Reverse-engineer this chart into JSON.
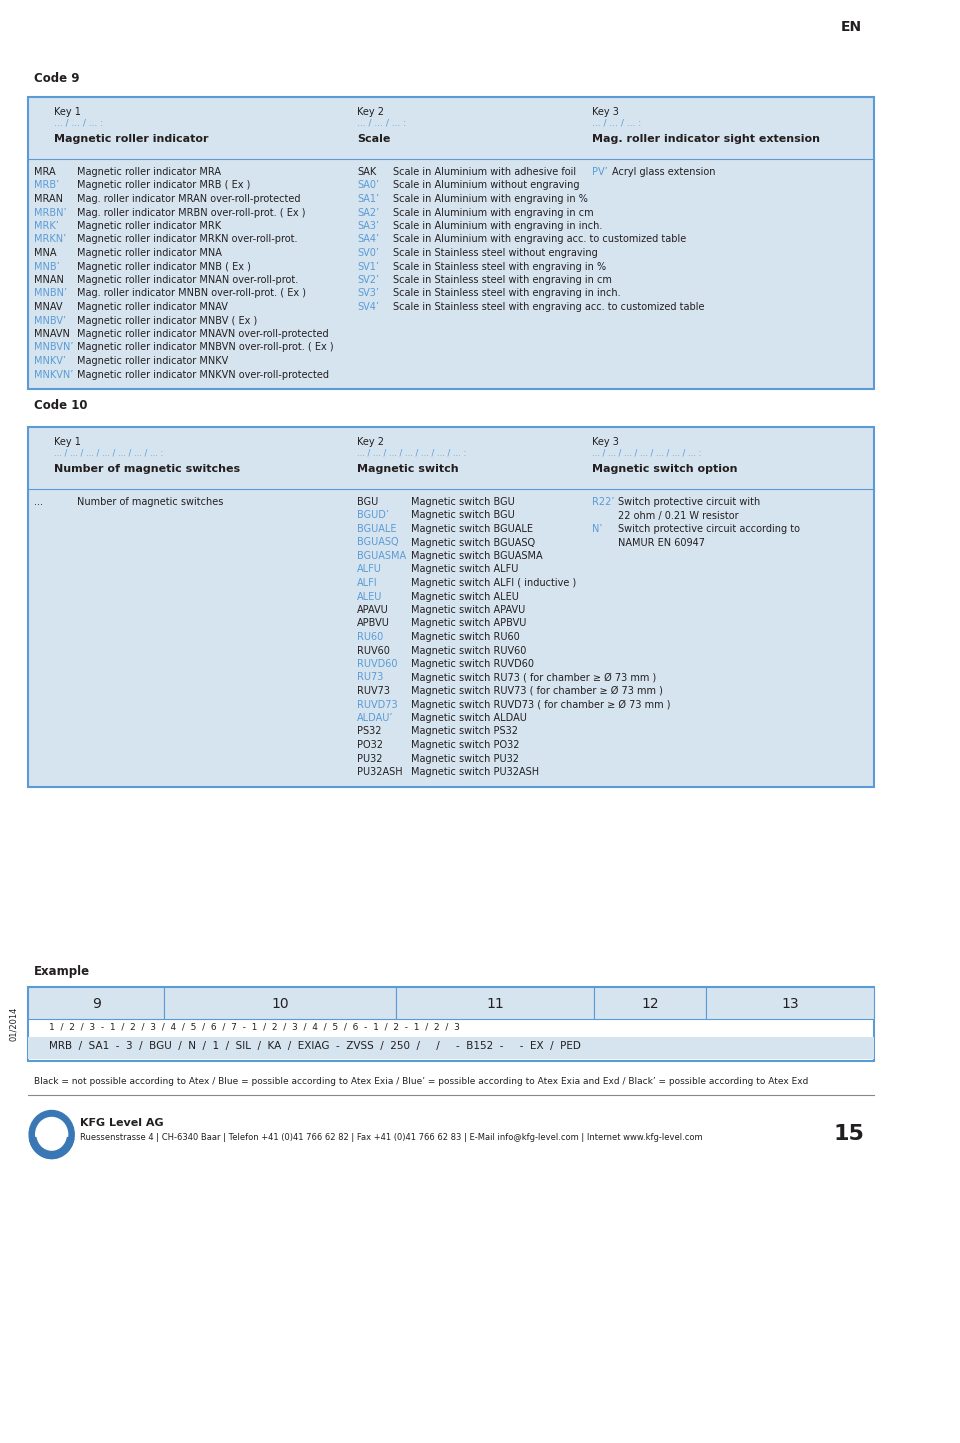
{
  "bg_color": "#ffffff",
  "text_color_black": "#231f20",
  "text_color_blue": "#5b9bd5",
  "box_bg": "#d6e4f0",
  "box_border": "#5b9bd5",
  "page_label": "EN",
  "page_number": "15",
  "code9_label": "Code 9",
  "code10_label": "Code 10",
  "example_label": "Example",
  "footer_line_color": "#888888",
  "company_name": "KFG Level AG",
  "company_address": "Ruessenstrasse 4 | CH-6340 Baar | Telefon +41 (0)41 766 62 82 | Fax +41 (0)41 766 62 83 | E-Mail info@kfg-level.com | Internet www.kfg-level.com",
  "footer_note": "Black = not possible according to Atex / Blue = possible according to Atex Exia / Blue’ = possible according to Atex Exia and Exd / Black’ = possible according to Atex Exd",
  "date_label": "01/2014",
  "code9_key1_label": "Key 1",
  "code9_key1_sub": "... / ... / ... :",
  "code9_key1_bold": "Magnetic roller indicator",
  "code9_key2_label": "Key 2",
  "code9_key2_sub": "... / ... / ... :",
  "code9_key2_bold": "Scale",
  "code9_key3_label": "Key 3",
  "code9_key3_sub": "... / ... / ... :",
  "code9_key3_bold": "Mag. roller indicator sight extension",
  "code9_col1": [
    [
      "MRA",
      "#231f20",
      "Magnetic roller indicator MRA"
    ],
    [
      "MRB’",
      "#5b9bd5",
      "Magnetic roller indicator MRB ( Ex )"
    ],
    [
      "MRAN",
      "#231f20",
      "Mag. roller indicator MRAN over-roll-protected"
    ],
    [
      "MRBN’",
      "#5b9bd5",
      "Mag. roller indicator MRBN over-roll-prot. ( Ex )"
    ],
    [
      "MRK’",
      "#5b9bd5",
      "Magnetic roller indicator MRK"
    ],
    [
      "MRKN’",
      "#5b9bd5",
      "Magnetic roller indicator MRKN over-roll-prot."
    ],
    [
      "MNA",
      "#231f20",
      "Magnetic roller indicator MNA"
    ],
    [
      "MNB’",
      "#5b9bd5",
      "Magnetic roller indicator MNB ( Ex )"
    ],
    [
      "MNAN",
      "#231f20",
      "Magnetic roller indicator MNAN over-roll-prot."
    ],
    [
      "MNBN’",
      "#5b9bd5",
      "Mag. roller indicator MNBN over-roll-prot. ( Ex )"
    ],
    [
      "MNAV",
      "#231f20",
      "Magnetic roller indicator MNAV"
    ],
    [
      "MNBV’",
      "#5b9bd5",
      "Magnetic roller indicator MNBV ( Ex )"
    ],
    [
      "MNAVN",
      "#231f20",
      "Magnetic roller indicator MNAVN over-roll-protected"
    ],
    [
      "MNBVN’",
      "#5b9bd5",
      "Magnetic roller indicator MNBVN over-roll-prot. ( Ex )"
    ],
    [
      "MNKV’",
      "#5b9bd5",
      "Magnetic roller indicator MNKV"
    ],
    [
      "MNKVN’",
      "#5b9bd5",
      "Magnetic roller indicator MNKVN over-roll-protected"
    ]
  ],
  "code9_col2": [
    [
      "SAK",
      "#231f20",
      "Scale in Aluminium with adhesive foil"
    ],
    [
      "SA0’",
      "#5b9bd5",
      "Scale in Aluminium without engraving"
    ],
    [
      "SA1’",
      "#5b9bd5",
      "Scale in Aluminium with engraving in %"
    ],
    [
      "SA2’",
      "#5b9bd5",
      "Scale in Aluminium with engraving in cm"
    ],
    [
      "SA3’",
      "#5b9bd5",
      "Scale in Aluminium with engraving in inch."
    ],
    [
      "SA4’",
      "#5b9bd5",
      "Scale in Aluminium with engraving acc. to customized table"
    ],
    [
      "SV0’",
      "#5b9bd5",
      "Scale in Stainless steel without engraving"
    ],
    [
      "SV1’",
      "#5b9bd5",
      "Scale in Stainless steel with engraving in %"
    ],
    [
      "SV2’",
      "#5b9bd5",
      "Scale in Stainless steel with engraving in cm"
    ],
    [
      "SV3’",
      "#5b9bd5",
      "Scale in Stainless steel with engraving in inch."
    ],
    [
      "SV4’",
      "#5b9bd5",
      "Scale in Stainless steel with engraving acc. to customized table"
    ]
  ],
  "code9_col3": [
    [
      "PV’",
      "#5b9bd5",
      "Acryl glass extension"
    ]
  ],
  "code10_key1_label": "Key 1",
  "code10_key1_sub": "... / ... / ... / ... / ... / ... / ... :",
  "code10_key1_bold": "Number of magnetic switches",
  "code10_key2_label": "Key 2",
  "code10_key2_sub": "... / ... / ... / ... / ... / ... / ... :",
  "code10_key2_bold": "Magnetic switch",
  "code10_key3_label": "Key 3",
  "code10_key3_sub": "... / ... / ... / ... / ... / ... / ... :",
  "code10_key3_bold": "Magnetic switch option",
  "code10_col1": [
    [
      "...",
      "#231f20",
      "Number of magnetic switches"
    ]
  ],
  "code10_col2": [
    [
      "BGU",
      "#231f20",
      "Magnetic switch BGU"
    ],
    [
      "BGUD’",
      "#5b9bd5",
      "Magnetic switch BGU"
    ],
    [
      "BGUALE",
      "#5b9bd5",
      "Magnetic switch BGUALE"
    ],
    [
      "BGUASQ",
      "#5b9bd5",
      "Magnetic switch BGUASQ"
    ],
    [
      "BGUASMA",
      "#5b9bd5",
      "Magnetic switch BGUASMA"
    ],
    [
      "ALFU",
      "#5b9bd5",
      "Magnetic switch ALFU"
    ],
    [
      "ALFI",
      "#5b9bd5",
      "Magnetic switch ALFI ( inductive )"
    ],
    [
      "ALEU",
      "#5b9bd5",
      "Magnetic switch ALEU"
    ],
    [
      "APAVU",
      "#231f20",
      "Magnetic switch APAVU"
    ],
    [
      "APBVU",
      "#231f20",
      "Magnetic switch APBVU"
    ],
    [
      "RU60",
      "#5b9bd5",
      "Magnetic switch RU60"
    ],
    [
      "RUV60",
      "#231f20",
      "Magnetic switch RUV60"
    ],
    [
      "RUVD60",
      "#5b9bd5",
      "Magnetic switch RUVD60"
    ],
    [
      "RU73",
      "#5b9bd5",
      "Magnetic switch RU73 ( for chamber ≥ Ø 73 mm )"
    ],
    [
      "RUV73",
      "#231f20",
      "Magnetic switch RUV73 ( for chamber ≥ Ø 73 mm )"
    ],
    [
      "RUVD73",
      "#5b9bd5",
      "Magnetic switch RUVD73 ( for chamber ≥ Ø 73 mm )"
    ],
    [
      "ALDAU’",
      "#5b9bd5",
      "Magnetic switch ALDAU"
    ],
    [
      "PS32",
      "#231f20",
      "Magnetic switch PS32"
    ],
    [
      "PO32",
      "#231f20",
      "Magnetic switch PO32"
    ],
    [
      "PU32",
      "#231f20",
      "Magnetic switch PU32"
    ],
    [
      "PU32ASH",
      "#231f20",
      "Magnetic switch PU32ASH"
    ]
  ],
  "code10_col3": [
    [
      "R22’",
      "#5b9bd5",
      "Switch protective circuit with"
    ],
    [
      "",
      "#231f20",
      "22 ohm / 0.21 W resistor"
    ],
    [
      "N’",
      "#5b9bd5",
      "Switch protective circuit according to"
    ],
    [
      "",
      "#231f20",
      "NAMUR EN 60947"
    ]
  ],
  "example_row1_labels": [
    "9",
    "10",
    "11",
    "12",
    "13"
  ],
  "example_col_starts": [
    30,
    175,
    422,
    632,
    752,
    930
  ],
  "example_row2_text": "1  /  2  /  3  -  1  /  2  /  3  /  4  /  5  /  6  /  7  -  1  /  2  /  3  /  4  /  5  /  6  -  1  /  2  -  1  /  2  /  3",
  "example_row3_text": "MRB  /  SA1  -  3  /  BGU  /  N  /  1  /  SIL  /  KA  /  EXIAG  -  ZVSS  /  250  /     /     -  B152  -     -  EX  /  PED"
}
